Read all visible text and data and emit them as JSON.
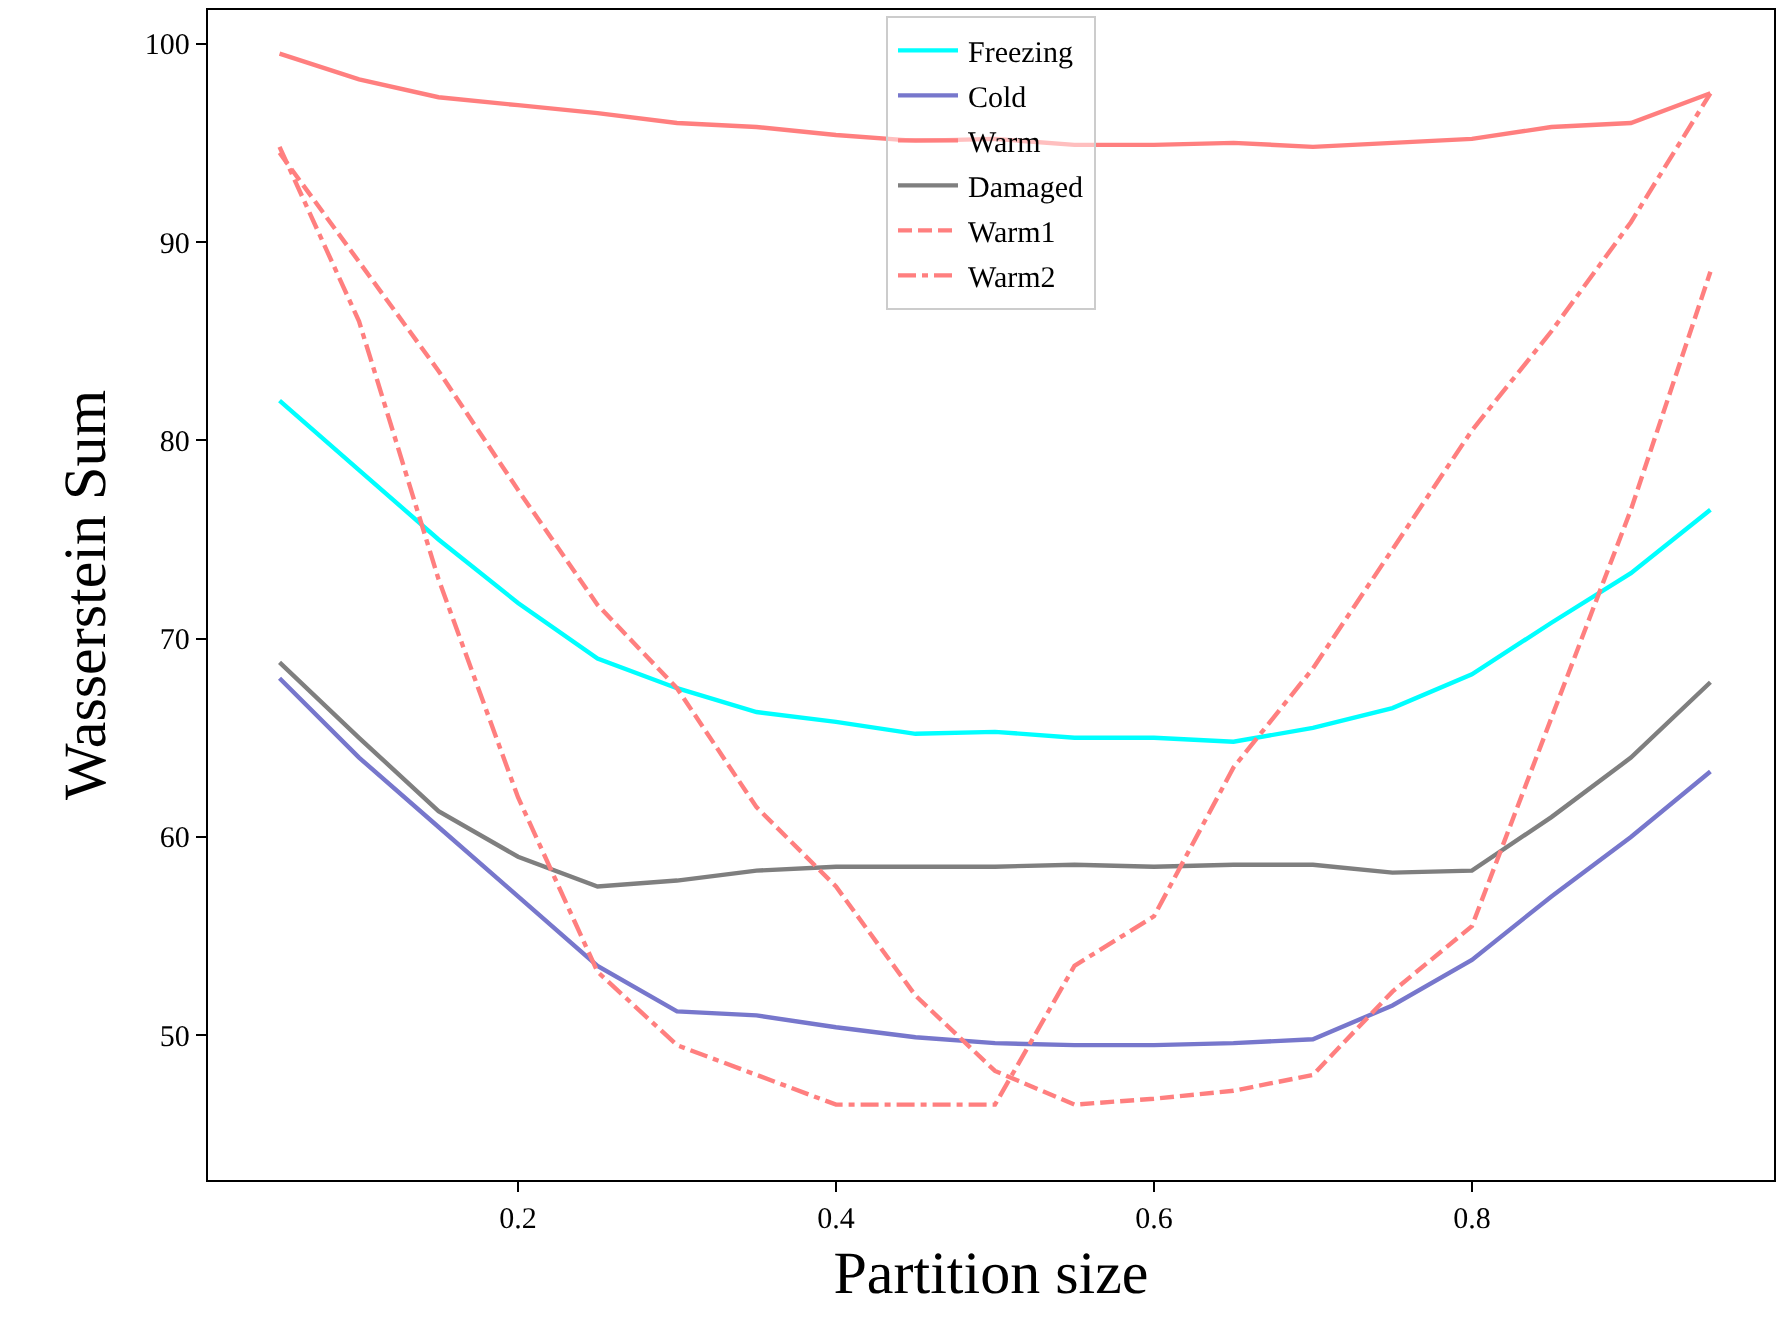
{
  "chart_data": {
    "type": "line",
    "xlabel": "Partition size",
    "ylabel": "Wasserstein Sum",
    "x": [
      0.05,
      0.1,
      0.15,
      0.2,
      0.25,
      0.3,
      0.35,
      0.4,
      0.45,
      0.5,
      0.55,
      0.6,
      0.65,
      0.7,
      0.75,
      0.8,
      0.85,
      0.9,
      0.95
    ],
    "series": [
      {
        "name": "Freezing",
        "color": "#00ffff",
        "line_style": "solid",
        "values": [
          82,
          78.5,
          75,
          71.8,
          69,
          67.5,
          66.3,
          65.8,
          65.2,
          65.3,
          65,
          65,
          64.8,
          65.5,
          66.5,
          68.2,
          70.8,
          73.3,
          76.5
        ]
      },
      {
        "name": "Cold",
        "color": "#7777cc",
        "line_style": "solid",
        "values": [
          68,
          64,
          60.5,
          57,
          53.5,
          51.2,
          51,
          50.4,
          49.9,
          49.6,
          49.5,
          49.5,
          49.6,
          49.8,
          51.5,
          53.8,
          57,
          60,
          63.3
        ]
      },
      {
        "name": "Warm",
        "color": "#ff7f7f",
        "line_style": "solid",
        "values": [
          99.5,
          98.2,
          97.3,
          96.9,
          96.5,
          96,
          95.8,
          95.4,
          95.1,
          95.2,
          94.9,
          94.9,
          95,
          94.8,
          95,
          95.2,
          95.8,
          96,
          97.5
        ]
      },
      {
        "name": "Damaged",
        "color": "#7f7f7f",
        "line_style": "solid",
        "values": [
          68.8,
          65,
          61.3,
          59,
          57.5,
          57.8,
          58.3,
          58.5,
          58.5,
          58.5,
          58.6,
          58.5,
          58.6,
          58.6,
          58.2,
          58.3,
          61,
          64,
          67.8
        ]
      },
      {
        "name": "Warm1",
        "color": "#ff7f7f",
        "line_style": "dashed",
        "values": [
          94.5,
          89,
          83.5,
          77.5,
          71.7,
          67.5,
          61.5,
          57.5,
          52,
          48.2,
          46.5,
          46.8,
          47.2,
          48,
          52.2,
          55.5,
          66,
          76.5,
          88.5
        ]
      },
      {
        "name": "Warm2",
        "color": "#ff7f7f",
        "line_style": "dashdot",
        "values": [
          94.8,
          86,
          73,
          62,
          53.2,
          49.5,
          48,
          46.5,
          46.5,
          46.5,
          53.5,
          56,
          63.5,
          68.5,
          74.5,
          80.5,
          85.5,
          91,
          97.5
        ]
      }
    ],
    "xlim": [
      0.005,
      0.99
    ],
    "ylim": [
      42.7,
      101.7
    ],
    "xticks": [
      0.2,
      0.4,
      0.6,
      0.8
    ],
    "yticks": [
      50,
      60,
      70,
      80,
      90,
      100
    ],
    "grid": false,
    "legend": "top",
    "marker": "none"
  }
}
